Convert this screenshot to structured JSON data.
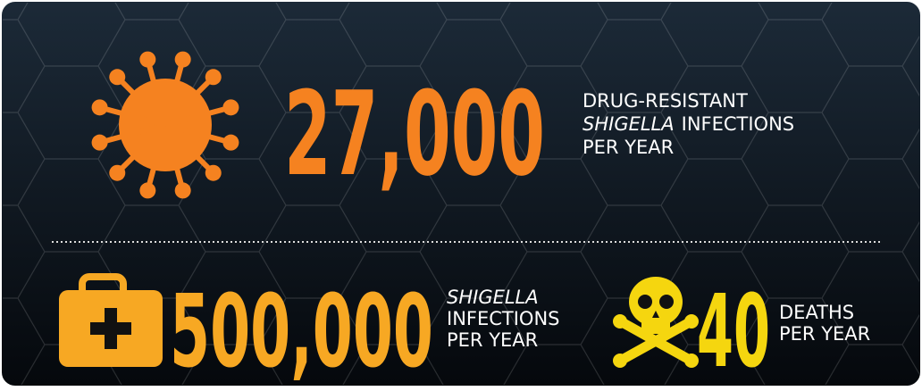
{
  "top": {
    "number": "27,000",
    "line1": "DRUG-RESISTANT",
    "line2_italic": "SHIGELLA",
    "line2_rest": "INFECTIONS",
    "line3": "PER YEAR"
  },
  "bottom_left": {
    "number": "500,000",
    "line1_italic": "SHIGELLA",
    "line2": "INFECTIONS",
    "line3": "PER YEAR"
  },
  "bottom_right": {
    "number": "40",
    "line1": "DEATHS",
    "line2": "PER YEAR"
  }
}
